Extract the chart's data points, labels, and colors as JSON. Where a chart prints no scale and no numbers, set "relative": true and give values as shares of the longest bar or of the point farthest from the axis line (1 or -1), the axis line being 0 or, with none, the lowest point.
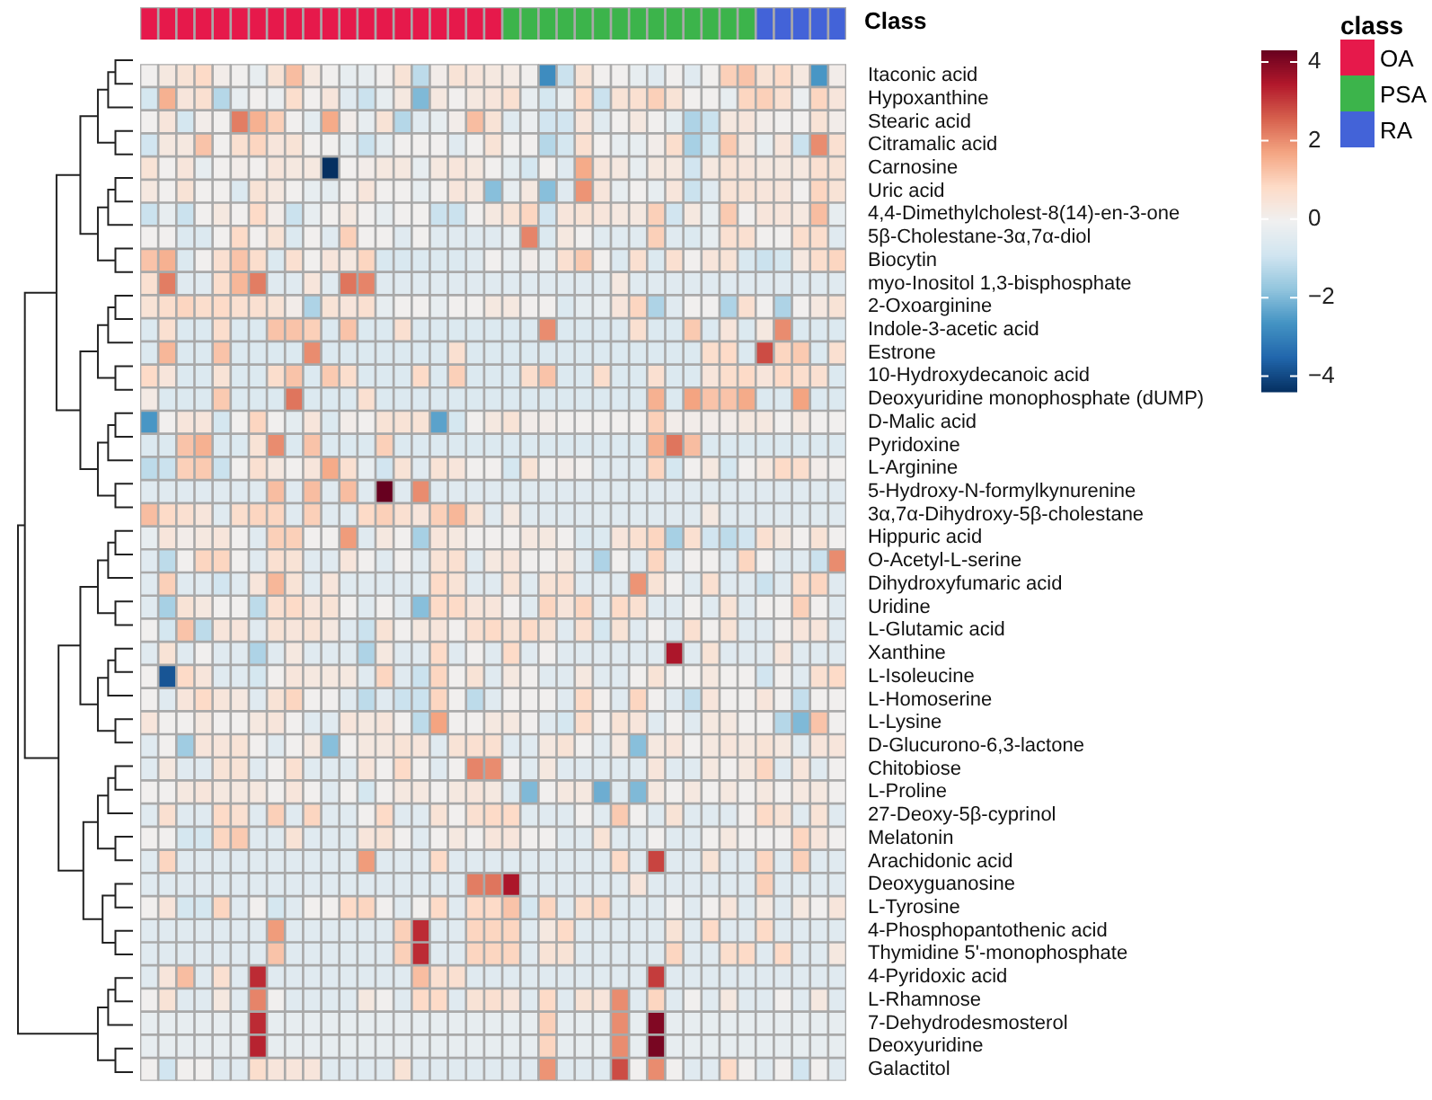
{
  "chart_data": [
    {
      "type": "bar",
      "stacked": true,
      "relative": true,
      "legend": "right",
      "legend_title": "class",
      "annotations": [
        "Class"
      ],
      "categories": [
        null,
        null,
        null,
        null,
        null,
        null,
        null,
        null,
        null,
        null,
        null,
        null,
        null,
        null,
        null,
        null,
        null,
        null,
        null,
        null,
        null,
        null,
        null,
        null,
        null,
        null,
        null,
        null,
        null,
        null,
        null,
        null,
        null,
        null,
        null,
        null,
        null,
        null,
        null
      ],
      "series": [
        {
          "name": "OA",
          "color": "#e6194b",
          "values": [
            1,
            1,
            1,
            1,
            1,
            1,
            1,
            1,
            1,
            1,
            1,
            1,
            1,
            1,
            1,
            1,
            1,
            1,
            1,
            1,
            null,
            null,
            null,
            null,
            null,
            null,
            null,
            null,
            null,
            null,
            null,
            null,
            null,
            null,
            null,
            null,
            null,
            null,
            null
          ]
        },
        {
          "name": "PSA",
          "color": "#3cb44b",
          "values": [
            null,
            null,
            null,
            null,
            null,
            null,
            null,
            null,
            null,
            null,
            null,
            null,
            null,
            null,
            null,
            null,
            null,
            null,
            null,
            null,
            1,
            1,
            1,
            1,
            1,
            1,
            1,
            1,
            1,
            1,
            1,
            1,
            1,
            1,
            null,
            null,
            null,
            null,
            null
          ]
        },
        {
          "name": "RA",
          "color": "#4363d8",
          "values": [
            null,
            null,
            null,
            null,
            null,
            null,
            null,
            null,
            null,
            null,
            null,
            null,
            null,
            null,
            null,
            null,
            null,
            null,
            null,
            null,
            null,
            null,
            null,
            null,
            null,
            null,
            null,
            null,
            null,
            null,
            null,
            null,
            null,
            null,
            1,
            1,
            1,
            1,
            1
          ]
        }
      ]
    },
    {
      "type": "heatmap",
      "clim": [
        -4.4,
        4.3
      ],
      "cticks": [
        4,
        2,
        0,
        -2,
        -4
      ],
      "categories": [
        null,
        null,
        null,
        null,
        null,
        null,
        null,
        null,
        null,
        null,
        null,
        null,
        null,
        null,
        null,
        null,
        null,
        null,
        null,
        null,
        null,
        null,
        null,
        null,
        null,
        null,
        null,
        null,
        null,
        null,
        null,
        null,
        null,
        null,
        null,
        null,
        null,
        null,
        null
      ],
      "y_categories": [
        "Itaconic acid",
        "Hypoxanthine",
        "Stearic acid",
        "Citramalic acid",
        "Carnosine",
        "Uric acid",
        "4,4-Dimethylcholest-8(14)-en-3-one",
        "5β-Cholestane-3α,7α-diol",
        "Biocytin",
        "myo-Inositol 1,3-bisphosphate",
        "2-Oxoarginine",
        "Indole-3-acetic acid",
        "Estrone",
        "10-Hydroxydecanoic acid",
        "Deoxyuridine monophosphate (dUMP)",
        "D-Malic acid",
        "Pyridoxine",
        "L-Arginine",
        "5-Hydroxy-N-formylkynurenine",
        "3α,7α-Dihydroxy-5β-cholestane",
        "Hippuric acid",
        "O-Acetyl-L-serine",
        "Dihydroxyfumaric acid",
        "Uridine",
        "L-Glutamic acid",
        "Xanthine",
        "L-Isoleucine",
        "L-Homoserine",
        "L-Lysine",
        "D-Glucurono-6,3-lactone",
        "Chitobiose",
        "L-Proline",
        "27-Deoxy-5β-cyprinol",
        "Melatonin",
        "Arachidonic acid",
        "Deoxyguanosine",
        "L-Tyrosine",
        "4-Phosphopantothenic acid",
        "Thymidine 5'-monophosphate",
        "4-Pyridoxic acid",
        "L-Rhamnose",
        "7-Dehydrodesmosterol",
        "Deoxyuridine",
        "Galactitol"
      ],
      "cells": [
        [
          0,
          0.3,
          0.5,
          0.8,
          0.1,
          0,
          -0.3,
          0.5,
          1.3,
          0.3,
          0,
          -0.3,
          -0.3,
          0,
          0.5,
          -1.2,
          0.1,
          0.5,
          0.4,
          0.3,
          0.2,
          0,
          -2.8,
          -1,
          0.5,
          0,
          0,
          -0.3,
          -0.5,
          0,
          -0.5,
          0,
          1,
          1.2,
          0.5,
          0.8,
          0.3,
          -2.6,
          0.1
        ],
        [
          -0.8,
          1.5,
          0.4,
          0.6,
          -1.3,
          -0.3,
          0,
          -0.2,
          0.7,
          0,
          0.4,
          -0.5,
          -1,
          -0.3,
          0.3,
          -2,
          0.3,
          0,
          0.3,
          0.4,
          0.6,
          -0.3,
          -0.8,
          -0.3,
          0.8,
          -1,
          0.5,
          0.6,
          1,
          0.5,
          0,
          0,
          -0.3,
          0.9,
          1,
          0.6,
          -0.2,
          0.9,
          0.4
        ],
        [
          0,
          0.4,
          -0.8,
          0.1,
          0,
          2.2,
          1.5,
          1,
          0,
          -0.4,
          1.6,
          0.1,
          -0.3,
          0.5,
          -1.3,
          -0.5,
          -0.3,
          0.1,
          1.3,
          0.5,
          -0.5,
          -0.2,
          -0.9,
          -0.9,
          0.4,
          -0.5,
          0,
          0.3,
          0,
          -0.4,
          -1.4,
          -1,
          0.3,
          0.4,
          0.1,
          0,
          0,
          0.5,
          0.1
        ],
        [
          -0.9,
          0.3,
          0.3,
          1.2,
          0,
          0.6,
          0.9,
          0.4,
          0.5,
          0,
          0,
          -0.3,
          -1,
          -0.4,
          0,
          0,
          0,
          -0.5,
          0,
          0.5,
          0,
          0,
          -1.3,
          -0.8,
          0.6,
          0,
          -0.3,
          -0.3,
          0.1,
          0.7,
          -1.5,
          -0.8,
          1.1,
          0.3,
          -0.3,
          0.4,
          -1,
          2,
          0.6
        ],
        [
          0.5,
          0,
          0.4,
          -0.3,
          0,
          0.1,
          0,
          0.4,
          0.3,
          0.3,
          -4.4,
          0,
          0.1,
          0.3,
          0.3,
          -0.3,
          0.3,
          0.4,
          0.3,
          0,
          -0.4,
          -0.8,
          0,
          -0.5,
          1.6,
          0.4,
          0.3,
          -0.3,
          0.3,
          0.3,
          -0.9,
          0.3,
          0.5,
          0.4,
          0.3,
          0.3,
          0.3,
          0.6,
          0.5
        ],
        [
          0.3,
          0,
          0.5,
          0,
          0,
          -0.6,
          0.5,
          0.3,
          0,
          -0.3,
          -0.4,
          0,
          0.4,
          0,
          0,
          -0.3,
          0,
          0.4,
          0.3,
          -1.9,
          -0.3,
          0.3,
          -1.9,
          -0.5,
          1.9,
          0.4,
          -0.3,
          0,
          -0.3,
          0.4,
          -1,
          -0.5,
          0.5,
          0.5,
          0.4,
          0.4,
          0,
          0.9,
          0.5
        ],
        [
          -1,
          -0.3,
          -1,
          0,
          0.3,
          0,
          0.8,
          0.1,
          -1,
          -0.3,
          0,
          0.3,
          0,
          -0.3,
          0,
          0,
          -1,
          -1,
          0,
          0.3,
          0.5,
          0.9,
          -0.9,
          0.4,
          0.5,
          0.4,
          0.3,
          0.3,
          1,
          -0.9,
          0.3,
          -0.3,
          1.1,
          0,
          0.4,
          0.4,
          0.3,
          1.3,
          -0.3
        ],
        [
          0,
          0,
          -0.6,
          -0.6,
          0,
          0.8,
          0,
          0.5,
          -0.6,
          0,
          -0.5,
          1,
          0,
          0,
          -0.5,
          0,
          -0.5,
          -0.5,
          -0.5,
          -0.5,
          -0.3,
          2.1,
          -0.6,
          0.3,
          0,
          -0.5,
          -0.5,
          -0.5,
          1,
          -0.5,
          -0.6,
          -0.3,
          0.6,
          0.6,
          0,
          0,
          0.7,
          0.7,
          -0.5
        ],
        [
          1.2,
          1.5,
          -0.6,
          0,
          0.6,
          1.2,
          0.7,
          -0.6,
          0.6,
          0,
          0.4,
          0.3,
          0.9,
          -0.7,
          -0.7,
          -0.6,
          -0.6,
          -0.6,
          -0.5,
          0,
          -0.3,
          0.1,
          -0.3,
          0.6,
          1.1,
          0,
          -0.6,
          0.6,
          -0.6,
          0.6,
          0,
          0.4,
          0.5,
          -0.7,
          -1,
          -0.8,
          0.3,
          0.7,
          0.9
        ],
        [
          0.6,
          2.2,
          -0.5,
          -0.5,
          0.7,
          1.4,
          2.2,
          -0.5,
          -0.5,
          0.4,
          -0.5,
          2.3,
          2.1,
          -0.5,
          -0.5,
          -0.5,
          -0.5,
          -0.5,
          -0.5,
          -0.5,
          -0.5,
          -0.5,
          -0.5,
          -0.5,
          -0.5,
          -0.5,
          0.3,
          -0.5,
          -0.5,
          -0.5,
          -0.5,
          -0.5,
          -0.5,
          -0.5,
          -0.5,
          -0.5,
          -0.5,
          -0.5,
          -0.5
        ],
        [
          0.5,
          0.7,
          0.9,
          0.7,
          0.8,
          0.6,
          0.6,
          0.5,
          0.1,
          -1.4,
          0.5,
          0.4,
          0.6,
          -0.3,
          0,
          0,
          -0.3,
          0,
          0,
          0.3,
          0.3,
          0,
          0,
          -0.6,
          -0.4,
          -0.3,
          0.4,
          0.9,
          -1.4,
          -0.5,
          0,
          0,
          -1.4,
          0.6,
          0,
          -1.4,
          0,
          0.3,
          0.5
        ],
        [
          -0.6,
          0.6,
          -0.6,
          -0.6,
          0.7,
          -0.6,
          -0.6,
          1.2,
          1.2,
          1,
          -0.6,
          1.2,
          -0.6,
          -0.6,
          0.6,
          -0.6,
          -0.6,
          -0.6,
          -0.6,
          -0.6,
          -0.6,
          -0.6,
          2,
          -0.6,
          -0.6,
          -0.6,
          -0.6,
          0.6,
          -0.6,
          -0.6,
          1.1,
          -0.6,
          0.4,
          -0.6,
          0.3,
          2,
          -0.6,
          -0.6,
          -0.6
        ],
        [
          -0.6,
          1.4,
          -0.6,
          -0.6,
          1.2,
          -0.6,
          -0.6,
          -0.6,
          -0.6,
          2,
          -0.6,
          -0.6,
          -0.6,
          -0.6,
          -0.6,
          -0.6,
          -0.6,
          0.6,
          -0.6,
          -0.6,
          -0.6,
          -0.6,
          -0.6,
          -0.6,
          -0.6,
          -0.6,
          -0.6,
          -0.6,
          -0.6,
          -0.6,
          -0.6,
          0.7,
          0.8,
          -0.6,
          2.8,
          0.9,
          1.1,
          -0.6,
          0.6
        ],
        [
          0.8,
          0.4,
          -0.6,
          -0.6,
          0.5,
          -0.6,
          -0.6,
          0.7,
          1.2,
          -0.6,
          1.1,
          0.7,
          -0.6,
          -0.6,
          -0.6,
          0.8,
          -0.6,
          1,
          -0.6,
          -0.6,
          -0.6,
          0.7,
          1.2,
          -0.6,
          -0.6,
          0.7,
          -0.6,
          -0.6,
          0.6,
          -0.6,
          -0.6,
          0.4,
          0.7,
          0.8,
          0.4,
          0.8,
          0.7,
          0.6,
          -0.6
        ],
        [
          0.2,
          -0.6,
          -0.6,
          -0.6,
          1.1,
          -0.6,
          -0.6,
          -0.6,
          2.3,
          -0.6,
          -0.6,
          -0.6,
          0.6,
          -0.6,
          -0.6,
          -0.6,
          -0.6,
          -0.6,
          -0.6,
          -0.6,
          -0.6,
          -0.6,
          -0.6,
          -0.6,
          -0.6,
          -0.6,
          -0.6,
          -0.6,
          1.5,
          -0.6,
          1.7,
          1.2,
          1.2,
          1.6,
          -0.6,
          -0.6,
          1.7,
          -0.6,
          -0.6
        ],
        [
          -2.6,
          0,
          0.4,
          0.4,
          -0.8,
          0,
          0.9,
          0,
          -0.4,
          0.4,
          -0.6,
          0.1,
          0,
          0.5,
          0.5,
          0.5,
          -2.4,
          -0.8,
          0,
          0.3,
          0.5,
          0.1,
          0.1,
          0,
          0,
          0,
          0,
          0,
          1,
          0.1,
          0.1,
          0.1,
          0.1,
          0.3,
          0.3,
          0,
          0.3,
          0,
          0
        ],
        [
          -0.6,
          -0.6,
          1.2,
          1.5,
          -0.6,
          -0.6,
          0.5,
          2,
          -0.6,
          1.2,
          -0.6,
          -0.6,
          -0.6,
          1,
          -0.6,
          -0.6,
          -0.6,
          -0.6,
          -0.6,
          -0.6,
          -0.6,
          -0.6,
          -0.6,
          -0.6,
          -0.6,
          -0.6,
          -0.6,
          -0.6,
          1.5,
          2.3,
          1.3,
          -0.6,
          -0.6,
          -0.6,
          -0.6,
          -0.6,
          -0.6,
          -0.6,
          -0.6
        ],
        [
          -1.2,
          -1,
          1,
          1.1,
          -1,
          0,
          0.6,
          0.3,
          0,
          0.4,
          1.6,
          0.6,
          -0.3,
          -0.9,
          0.5,
          -0.5,
          0.5,
          0.4,
          0,
          0,
          -0.8,
          0.5,
          0,
          0.1,
          0,
          -0.5,
          -0.5,
          -0.5,
          0.9,
          -0.8,
          0,
          0.3,
          -0.8,
          0,
          0.3,
          0.8,
          0.7,
          0.1,
          0
        ],
        [
          -0.5,
          -0.5,
          -0.5,
          -0.5,
          -0.5,
          -0.5,
          -0.5,
          1.3,
          -0.5,
          1.3,
          -0.5,
          1.3,
          -0.5,
          4.3,
          -0.5,
          2,
          -0.5,
          -0.5,
          -0.5,
          -0.5,
          -0.5,
          -0.5,
          -0.5,
          -0.5,
          -0.5,
          -0.5,
          -0.5,
          -0.5,
          -0.5,
          -0.5,
          -0.5,
          -0.5,
          -0.5,
          -0.5,
          -0.5,
          -0.5,
          -0.5,
          -0.5,
          -0.5
        ],
        [
          1.3,
          0.8,
          0.6,
          0.4,
          -0.5,
          0.7,
          0.9,
          0.9,
          -0.5,
          1,
          -0.5,
          -0.5,
          0.8,
          1,
          0.6,
          0.4,
          1,
          1.4,
          0.5,
          -0.5,
          0.3,
          -0.5,
          -0.5,
          -0.5,
          -0.5,
          -0.5,
          -0.5,
          -0.5,
          -0.5,
          -0.5,
          -0.5,
          0.3,
          -0.5,
          -0.5,
          -0.5,
          -0.5,
          -0.5,
          -0.5,
          -0.5
        ],
        [
          -0.3,
          0.4,
          0.1,
          0.3,
          0.4,
          0,
          -0.5,
          1,
          1,
          0,
          0,
          1.8,
          -0.5,
          0.3,
          0,
          -1.5,
          0.4,
          0.3,
          0,
          0,
          0,
          0.3,
          0.3,
          0,
          -0.6,
          -0.6,
          0.4,
          0.6,
          0.9,
          -1.5,
          0.6,
          -0.9,
          -1.2,
          -0.9,
          0.6,
          0.3,
          0,
          0.5,
          0
        ],
        [
          -0.5,
          -1.2,
          0,
          0.9,
          0.9,
          0,
          -0.5,
          0.6,
          0.5,
          -0.5,
          -0.5,
          0.4,
          0,
          -0.5,
          0,
          -0.5,
          0.5,
          0.6,
          -0.5,
          0.3,
          0.4,
          0,
          0,
          0.3,
          -0.5,
          -1.4,
          0,
          -0.5,
          0.9,
          -0.5,
          0,
          0,
          -0.5,
          0.9,
          0,
          -0.5,
          -0.5,
          -1,
          2
        ],
        [
          -0.5,
          1,
          -0.5,
          -0.5,
          -0.9,
          -0.5,
          0.4,
          1.4,
          0.5,
          -0.5,
          0.4,
          -0.5,
          -0.5,
          -0.5,
          -0.5,
          -0.5,
          0.8,
          0.5,
          -0.5,
          -0.5,
          0.5,
          -0.5,
          0.5,
          0.6,
          -0.5,
          -0.5,
          -0.5,
          1.9,
          0.5,
          0,
          -0.5,
          0.6,
          -0.5,
          -0.5,
          -1,
          -0.5,
          0.7,
          0.9,
          -0.5
        ],
        [
          -0.5,
          -1.5,
          0.5,
          0.3,
          0,
          0,
          -1.2,
          0.6,
          0.8,
          0.4,
          0.5,
          0,
          -0.5,
          0,
          -0.5,
          -1.9,
          0.8,
          0.8,
          0.4,
          0.4,
          0,
          -0.5,
          0.9,
          0.4,
          0.9,
          -0.5,
          0.8,
          0.6,
          -0.5,
          -0.5,
          0,
          -0.5,
          0.5,
          -0.5,
          0,
          0,
          1,
          0,
          -0.5
        ],
        [
          0,
          -0.8,
          1.2,
          -1.2,
          0.4,
          0.4,
          -0.5,
          0.5,
          0.4,
          0.5,
          0.3,
          -0.5,
          -1,
          0.5,
          0,
          0.3,
          0.4,
          0,
          0.6,
          0.8,
          0.5,
          0.8,
          0.5,
          -0.5,
          0.6,
          -0.8,
          0.5,
          -0.5,
          0,
          -0.5,
          0.6,
          0,
          0.5,
          -0.5,
          -0.5,
          0,
          0.4,
          0.4,
          -0.5
        ],
        [
          -0.5,
          0.5,
          -0.5,
          0,
          -0.5,
          -0.5,
          -1.4,
          -0.5,
          0.3,
          -0.5,
          -0.5,
          -0.5,
          -1.4,
          0.3,
          -0.5,
          -0.5,
          0.8,
          -0.5,
          0,
          -0.5,
          0.8,
          -0.5,
          0,
          -0.5,
          -0.5,
          -0.5,
          -0.5,
          -0.5,
          -0.5,
          3.5,
          -0.5,
          0.5,
          -0.5,
          -0.5,
          -0.5,
          0.4,
          -0.5,
          -0.5,
          -0.5
        ],
        [
          0,
          -3.8,
          0.8,
          0.4,
          -0.5,
          -0.5,
          -0.8,
          0,
          0.4,
          0.3,
          0.3,
          0.3,
          -0.5,
          0.9,
          -0.5,
          -1,
          0.9,
          0,
          0.5,
          -0.5,
          0.3,
          0,
          -0.5,
          -0.5,
          0.3,
          -0.5,
          -0.5,
          0,
          0.5,
          0,
          0,
          0.3,
          0,
          0,
          -0.9,
          0,
          -0.5,
          0.6,
          0.8
        ],
        [
          0,
          -0.5,
          0.4,
          0.8,
          0.4,
          0.3,
          -0.5,
          0.5,
          0.9,
          0,
          0,
          -0.5,
          -1.2,
          -0.5,
          -1,
          -1,
          0.9,
          0,
          -1.2,
          -0.5,
          0,
          0,
          0,
          -0.5,
          0.8,
          0,
          -0.5,
          0.9,
          0,
          -0.5,
          -1.1,
          0.4,
          0,
          0,
          0.4,
          0,
          -1.1,
          0,
          0
        ],
        [
          0.4,
          0,
          0,
          0.3,
          0,
          0,
          0.3,
          0.4,
          0,
          -0.5,
          -0.5,
          0.4,
          0.3,
          0.4,
          0,
          -1.2,
          1.7,
          0,
          0,
          0.3,
          0.3,
          0,
          -0.5,
          -0.8,
          0.7,
          0,
          0.5,
          0.4,
          -0.5,
          0,
          -0.5,
          0.3,
          0.3,
          0,
          0,
          -1.3,
          -2,
          1.2,
          0
        ],
        [
          -0.5,
          0,
          -1.6,
          0.4,
          0.4,
          0.5,
          0,
          -0.5,
          0,
          0.3,
          -1.9,
          0,
          0.3,
          0.3,
          0.5,
          0.4,
          -0.5,
          0.5,
          0.6,
          0.6,
          -0.5,
          -0.5,
          0.3,
          0.5,
          0,
          -0.5,
          0.3,
          -1.9,
          0.3,
          0.4,
          0,
          0.3,
          0.4,
          0.3,
          0.5,
          0.3,
          -0.5,
          0.4,
          0.4
        ],
        [
          -0.5,
          0.3,
          -0.5,
          -0.5,
          0.5,
          0.5,
          -0.5,
          0,
          0.6,
          -0.5,
          -0.5,
          -0.5,
          0.4,
          0,
          0.8,
          0,
          -0.5,
          0,
          2.1,
          2,
          0,
          -0.5,
          0.3,
          -0.5,
          -0.5,
          -0.5,
          -0.5,
          -0.5,
          0.4,
          -0.5,
          -0.5,
          0.3,
          0,
          0.3,
          0.9,
          -0.5,
          0.4,
          -0.5,
          0
        ],
        [
          0,
          0,
          0.3,
          0.4,
          0.3,
          0.3,
          0.3,
          0,
          0.4,
          0,
          -0.5,
          0,
          -0.8,
          0,
          0.3,
          0.3,
          0,
          0.3,
          0.4,
          0.3,
          -0.5,
          -2,
          0,
          0.3,
          0.3,
          -2.2,
          -0.5,
          -2,
          0.3,
          0,
          0.3,
          0,
          0.3,
          0,
          0.3,
          0,
          0.3,
          0.3,
          0
        ],
        [
          -0.5,
          0.6,
          -0.5,
          -0.5,
          0.8,
          0.6,
          -0.5,
          1,
          -0.5,
          0.9,
          -0.5,
          -0.5,
          0,
          0.8,
          -0.5,
          -0.5,
          0.5,
          0,
          0.6,
          0.8,
          0.8,
          -0.5,
          -0.5,
          -0.5,
          0,
          -0.5,
          1.1,
          0,
          -0.5,
          0.5,
          -0.5,
          -0.5,
          -0.5,
          0,
          0.8,
          0.5,
          -0.5,
          0.5,
          -0.5
        ],
        [
          0,
          0,
          -0.8,
          -0.8,
          0.9,
          1.1,
          -0.5,
          -0.5,
          0.5,
          -0.5,
          -0.5,
          -0.5,
          0.4,
          0.5,
          0,
          -0.5,
          0,
          0.3,
          0,
          0.4,
          0.4,
          0,
          0,
          -0.5,
          -0.5,
          0.5,
          -0.5,
          -0.5,
          0,
          -0.5,
          -0.5,
          0,
          0.3,
          0,
          0,
          0,
          0.9,
          0.4,
          0
        ],
        [
          -0.5,
          0.9,
          -0.5,
          -0.5,
          -0.5,
          -0.5,
          -0.5,
          -0.5,
          -0.5,
          -0.5,
          -0.5,
          -0.5,
          1.8,
          -0.5,
          -0.5,
          -0.5,
          0.8,
          -0.5,
          -0.5,
          -0.5,
          -0.5,
          -0.5,
          -0.5,
          -0.5,
          -0.5,
          -0.5,
          0.8,
          -0.5,
          2.9,
          -0.5,
          -0.5,
          0.5,
          -0.5,
          -0.5,
          0.9,
          -0.5,
          1,
          -0.5,
          -0.5
        ],
        [
          -0.5,
          -0.5,
          -0.5,
          -0.5,
          -0.5,
          -0.5,
          -0.5,
          -0.5,
          -0.5,
          -0.5,
          -0.5,
          -0.5,
          -0.5,
          -0.5,
          -0.5,
          -0.5,
          -0.5,
          -0.5,
          2.2,
          2.3,
          3.5,
          -0.5,
          -0.5,
          -0.5,
          -0.5,
          -0.5,
          -0.5,
          0.4,
          -0.5,
          -0.5,
          -0.5,
          -0.5,
          -0.5,
          -0.5,
          1,
          -0.5,
          -0.5,
          -0.5,
          -0.5
        ],
        [
          0,
          0.4,
          -0.8,
          -0.8,
          0.9,
          -0.5,
          0,
          -0.8,
          -0.5,
          0,
          0,
          0.8,
          0.9,
          0,
          -0.5,
          0,
          0.8,
          -0.5,
          0.8,
          0.8,
          1.2,
          -0.8,
          0.9,
          -0.5,
          0.7,
          0.9,
          -0.5,
          -0.5,
          -0.5,
          0,
          -0.5,
          0,
          0.4,
          -0.5,
          0.3,
          -0.5,
          0.3,
          0,
          0.4
        ],
        [
          -0.5,
          -0.5,
          -0.5,
          -0.5,
          -0.5,
          -0.5,
          -0.5,
          1.8,
          -0.5,
          -0.5,
          -0.5,
          -0.5,
          -0.5,
          -0.5,
          1,
          3.2,
          -0.5,
          -0.5,
          0.9,
          0.9,
          0.9,
          -0.5,
          0.3,
          0.8,
          -0.5,
          -0.5,
          -0.5,
          -0.5,
          -0.5,
          0.5,
          -0.5,
          0.8,
          -0.5,
          -0.5,
          0.8,
          -0.5,
          -0.5,
          -0.5,
          -0.5
        ],
        [
          -0.5,
          -0.5,
          -0.5,
          -0.5,
          -0.5,
          -0.5,
          -0.5,
          1.2,
          -0.5,
          -0.5,
          -0.5,
          -0.5,
          -0.5,
          -0.5,
          1,
          3.2,
          -0.5,
          -0.5,
          0.9,
          0.9,
          0.9,
          -0.5,
          0.5,
          0.5,
          -0.5,
          -0.5,
          -0.5,
          -0.5,
          -0.5,
          0.9,
          -0.5,
          -0.5,
          0.7,
          0.8,
          -0.5,
          0.8,
          -0.5,
          -0.5,
          0.3
        ],
        [
          -0.5,
          0.4,
          1.3,
          -0.5,
          0.6,
          -0.5,
          3.2,
          -0.5,
          -0.5,
          -0.5,
          -0.5,
          -0.5,
          -0.5,
          -0.5,
          -0.5,
          1.3,
          0.6,
          0.6,
          -0.5,
          -0.5,
          -0.5,
          -0.5,
          -0.5,
          -0.5,
          -0.5,
          -0.5,
          -0.5,
          -0.5,
          3,
          -0.5,
          -0.5,
          -0.5,
          -0.5,
          -0.5,
          -0.5,
          -0.5,
          -0.5,
          -0.5,
          -0.5
        ],
        [
          0,
          0.5,
          -0.5,
          -0.5,
          0.3,
          -0.5,
          2.1,
          0,
          -0.5,
          -0.5,
          -0.5,
          -0.5,
          0.3,
          0,
          -0.5,
          0.8,
          0.8,
          -0.5,
          0.5,
          0.6,
          0.4,
          -0.5,
          0.8,
          -0.5,
          0.5,
          0.4,
          2,
          -0.5,
          0.9,
          -0.5,
          0,
          -0.5,
          0.3,
          -0.5,
          -0.5,
          0,
          -0.5,
          0.3,
          -0.5
        ],
        [
          -0.3,
          -0.3,
          -0.3,
          -0.3,
          -0.3,
          -0.3,
          3.2,
          -0.3,
          -0.3,
          -0.3,
          -0.3,
          -0.3,
          -0.3,
          -0.3,
          -0.3,
          -0.3,
          -0.3,
          -0.3,
          -0.3,
          -0.3,
          -0.3,
          -0.3,
          1,
          -0.3,
          -0.3,
          -0.3,
          2,
          -0.3,
          4,
          -0.3,
          -0.3,
          -0.3,
          -0.3,
          -0.3,
          -0.3,
          -0.3,
          -0.3,
          -0.3,
          -0.3
        ],
        [
          -0.3,
          -0.3,
          -0.3,
          -0.3,
          -0.3,
          -0.3,
          3.3,
          -0.3,
          -0.3,
          -0.3,
          -0.3,
          -0.3,
          -0.3,
          -0.3,
          -0.3,
          -0.3,
          -0.3,
          -0.3,
          -0.3,
          -0.3,
          -0.3,
          -0.3,
          0.9,
          -0.3,
          -0.3,
          -0.3,
          2,
          -0.3,
          4.1,
          -0.3,
          -0.3,
          -0.3,
          -0.3,
          -0.3,
          -0.3,
          -0.3,
          -0.3,
          -0.3,
          -0.3
        ],
        [
          0,
          -0.9,
          0,
          0,
          -0.5,
          -0.5,
          0.7,
          0.4,
          0.4,
          0.4,
          -0.5,
          -0.5,
          -0.5,
          -0.5,
          0.5,
          -0.5,
          -0.5,
          -0.5,
          -0.5,
          -0.5,
          -0.5,
          -0.5,
          1.9,
          -0.5,
          -0.5,
          -0.5,
          2.8,
          0,
          2,
          0,
          -0.5,
          -0.5,
          0.8,
          0,
          -0.5,
          0,
          -0.9,
          0,
          -0.5
        ]
      ]
    }
  ]
}
